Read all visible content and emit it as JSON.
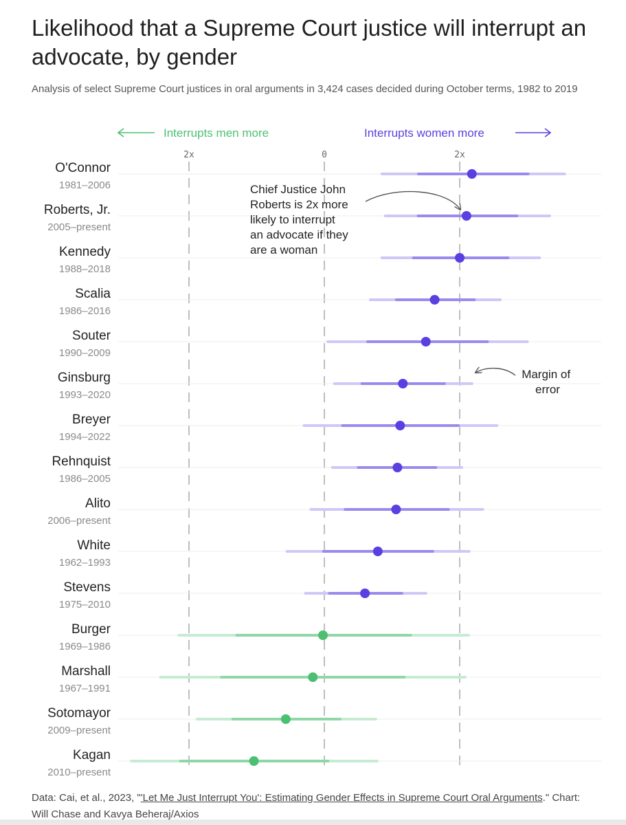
{
  "title": "Likelihood that a Supreme Court justice will interrupt an advocate, by gender",
  "subtitle": "Analysis of select Supreme Court justices in oral arguments in 3,424 cases decided during October terms, 1982 to 2019",
  "legend": {
    "left_label": "Interrupts men more",
    "right_label": "Interrupts women more"
  },
  "annotations": {
    "roberts": [
      "Chief Justice John",
      "Roberts is 2x more",
      "likely to interrupt",
      "an advocate if they",
      "are a woman"
    ],
    "margin": [
      "Margin of",
      "error"
    ]
  },
  "footer": {
    "prefix": "Data: Cai, et al., 2023, \"",
    "link_text": "'Let Me Just Interrupt You': Estimating Gender Effects in Supreme Court Oral Arguments",
    "suffix": ".\" Chart: Will Chase and Kavya Beheraj/Axios"
  },
  "colors": {
    "women": "#5b3fe0",
    "women_light": "#cfc8f7",
    "men": "#4cbf72",
    "men_light": "#c6ebd3",
    "name": "#222222",
    "years": "#8a8a8a"
  },
  "chart_data": {
    "type": "scatter",
    "x_ticks": [
      {
        "value": -2,
        "label": "2x"
      },
      {
        "value": 0,
        "label": "0"
      },
      {
        "value": 2,
        "label": "2x"
      }
    ],
    "xlim": [
      -2.9,
      4.1
    ],
    "rows": [
      {
        "name": "O'Connor",
        "years": "1981–2006",
        "value": 2.18,
        "low": 0.85,
        "high": 3.55,
        "side": "women"
      },
      {
        "name": "Roberts, Jr.",
        "years": "2005–present",
        "value": 2.1,
        "low": 0.9,
        "high": 3.33,
        "side": "women"
      },
      {
        "name": "Kennedy",
        "years": "1988–2018",
        "value": 2.0,
        "low": 0.85,
        "high": 3.18,
        "side": "women"
      },
      {
        "name": "Scalia",
        "years": "1986–2016",
        "value": 1.63,
        "low": 0.68,
        "high": 2.6,
        "side": "women"
      },
      {
        "name": "Souter",
        "years": "1990–2009",
        "value": 1.5,
        "low": 0.05,
        "high": 3.0,
        "side": "women"
      },
      {
        "name": "Ginsburg",
        "years": "1993–2020",
        "value": 1.16,
        "low": 0.15,
        "high": 2.18,
        "side": "women"
      },
      {
        "name": "Breyer",
        "years": "1994–2022",
        "value": 1.12,
        "low": -0.3,
        "high": 2.55,
        "side": "women"
      },
      {
        "name": "Rehnquist",
        "years": "1986–2005",
        "value": 1.08,
        "low": 0.12,
        "high": 2.03,
        "side": "women"
      },
      {
        "name": "Alito",
        "years": "2006–present",
        "value": 1.06,
        "low": -0.2,
        "high": 2.34,
        "side": "women"
      },
      {
        "name": "White",
        "years": "1962–1993",
        "value": 0.79,
        "low": -0.55,
        "high": 2.14,
        "side": "women"
      },
      {
        "name": "Stevens",
        "years": "1975–2010",
        "value": 0.6,
        "low": -0.28,
        "high": 1.5,
        "side": "women"
      },
      {
        "name": "Burger",
        "years": "1969–1986",
        "value": -0.02,
        "low": -2.15,
        "high": 2.13,
        "side": "men"
      },
      {
        "name": "Marshall",
        "years": "1967–1991",
        "value": -0.17,
        "low": -2.42,
        "high": 2.08,
        "side": "men"
      },
      {
        "name": "Sotomayor",
        "years": "2009–present",
        "value": -0.57,
        "low": -1.88,
        "high": 0.76,
        "side": "men"
      },
      {
        "name": "Kagan",
        "years": "2010–present",
        "value": -1.04,
        "low": -2.85,
        "high": 0.78,
        "side": "men"
      }
    ]
  }
}
